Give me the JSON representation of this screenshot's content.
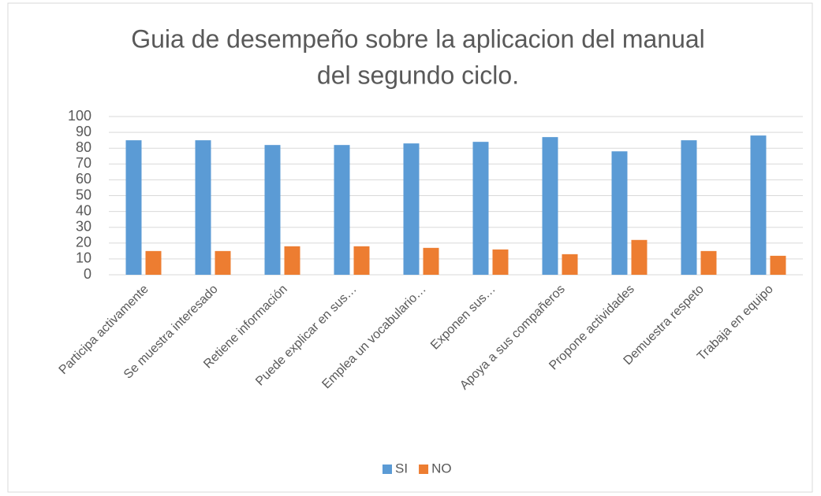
{
  "chart_data": {
    "type": "bar",
    "title": [
      "Guia de desempeño sobre la aplicacion del manual",
      "del segundo ciclo."
    ],
    "categories": [
      "Participa activamente",
      "Se muestra interesado",
      "Retiene información",
      "Puede explicar en sus…",
      "Emplea un vocabulario…",
      "Exponen sus…",
      "Apoya a sus compañeros",
      "Propone actividades",
      "Demuestra respeto",
      "Trabaja en equipo"
    ],
    "series": [
      {
        "name": "SI",
        "color": "#5b9bd5",
        "values": [
          85,
          85,
          82,
          82,
          83,
          84,
          87,
          78,
          85,
          88
        ]
      },
      {
        "name": "NO",
        "color": "#ed7d31",
        "values": [
          15,
          15,
          18,
          18,
          17,
          16,
          13,
          22,
          15,
          12
        ]
      }
    ],
    "ylim": [
      0,
      100
    ],
    "yticks": [
      0,
      10,
      20,
      30,
      40,
      50,
      60,
      70,
      80,
      90,
      100
    ],
    "grid": true,
    "legend": "bottom"
  }
}
